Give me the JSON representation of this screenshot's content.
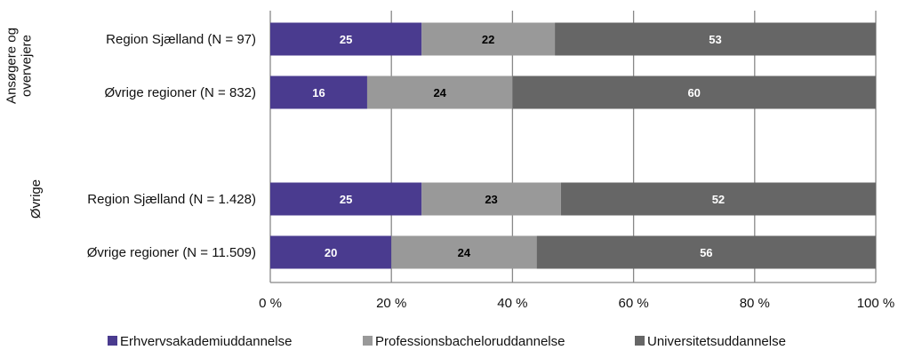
{
  "colors": {
    "series": [
      "#4a3b8f",
      "#999999",
      "#666666"
    ],
    "grid": "#888888",
    "axis": "#888888",
    "label_on_dark": "#ffffff",
    "label_on_light": "#000000"
  },
  "chart_data": {
    "type": "bar",
    "orientation": "horizontal",
    "stacked": true,
    "percent_stacked": true,
    "title": "",
    "xlabel": "",
    "ylabel": "",
    "xlim": [
      0,
      100
    ],
    "x_ticks": [
      "0 %",
      "20 %",
      "40 %",
      "60 %",
      "80 %",
      "100 %"
    ],
    "x_tick_values": [
      0,
      20,
      40,
      60,
      80,
      100
    ],
    "grid": "vertical",
    "legend_position": "bottom",
    "groups": [
      {
        "label": "Ansøgere og overvejere",
        "label_lines": [
          "Ansøgere og",
          "overvejere"
        ],
        "categories": [
          "Region Sjælland (N = 97)",
          "Øvrige regioner (N = 832)"
        ]
      },
      {
        "label": "Øvrige",
        "label_lines": [
          "Øvrige"
        ],
        "categories": [
          "Region Sjælland (N = 1.428)",
          "Øvrige regioner (N = 11.509)"
        ]
      }
    ],
    "series": [
      {
        "name": "Erhvervsakademiuddannelse",
        "values": [
          [
            25,
            16
          ],
          [
            25,
            20
          ]
        ]
      },
      {
        "name": "Professionsbacheloruddannelse",
        "values": [
          [
            22,
            24
          ],
          [
            23,
            24
          ]
        ]
      },
      {
        "name": "Universitetsuddannelse",
        "values": [
          [
            53,
            60
          ],
          [
            52,
            56
          ]
        ]
      }
    ]
  }
}
